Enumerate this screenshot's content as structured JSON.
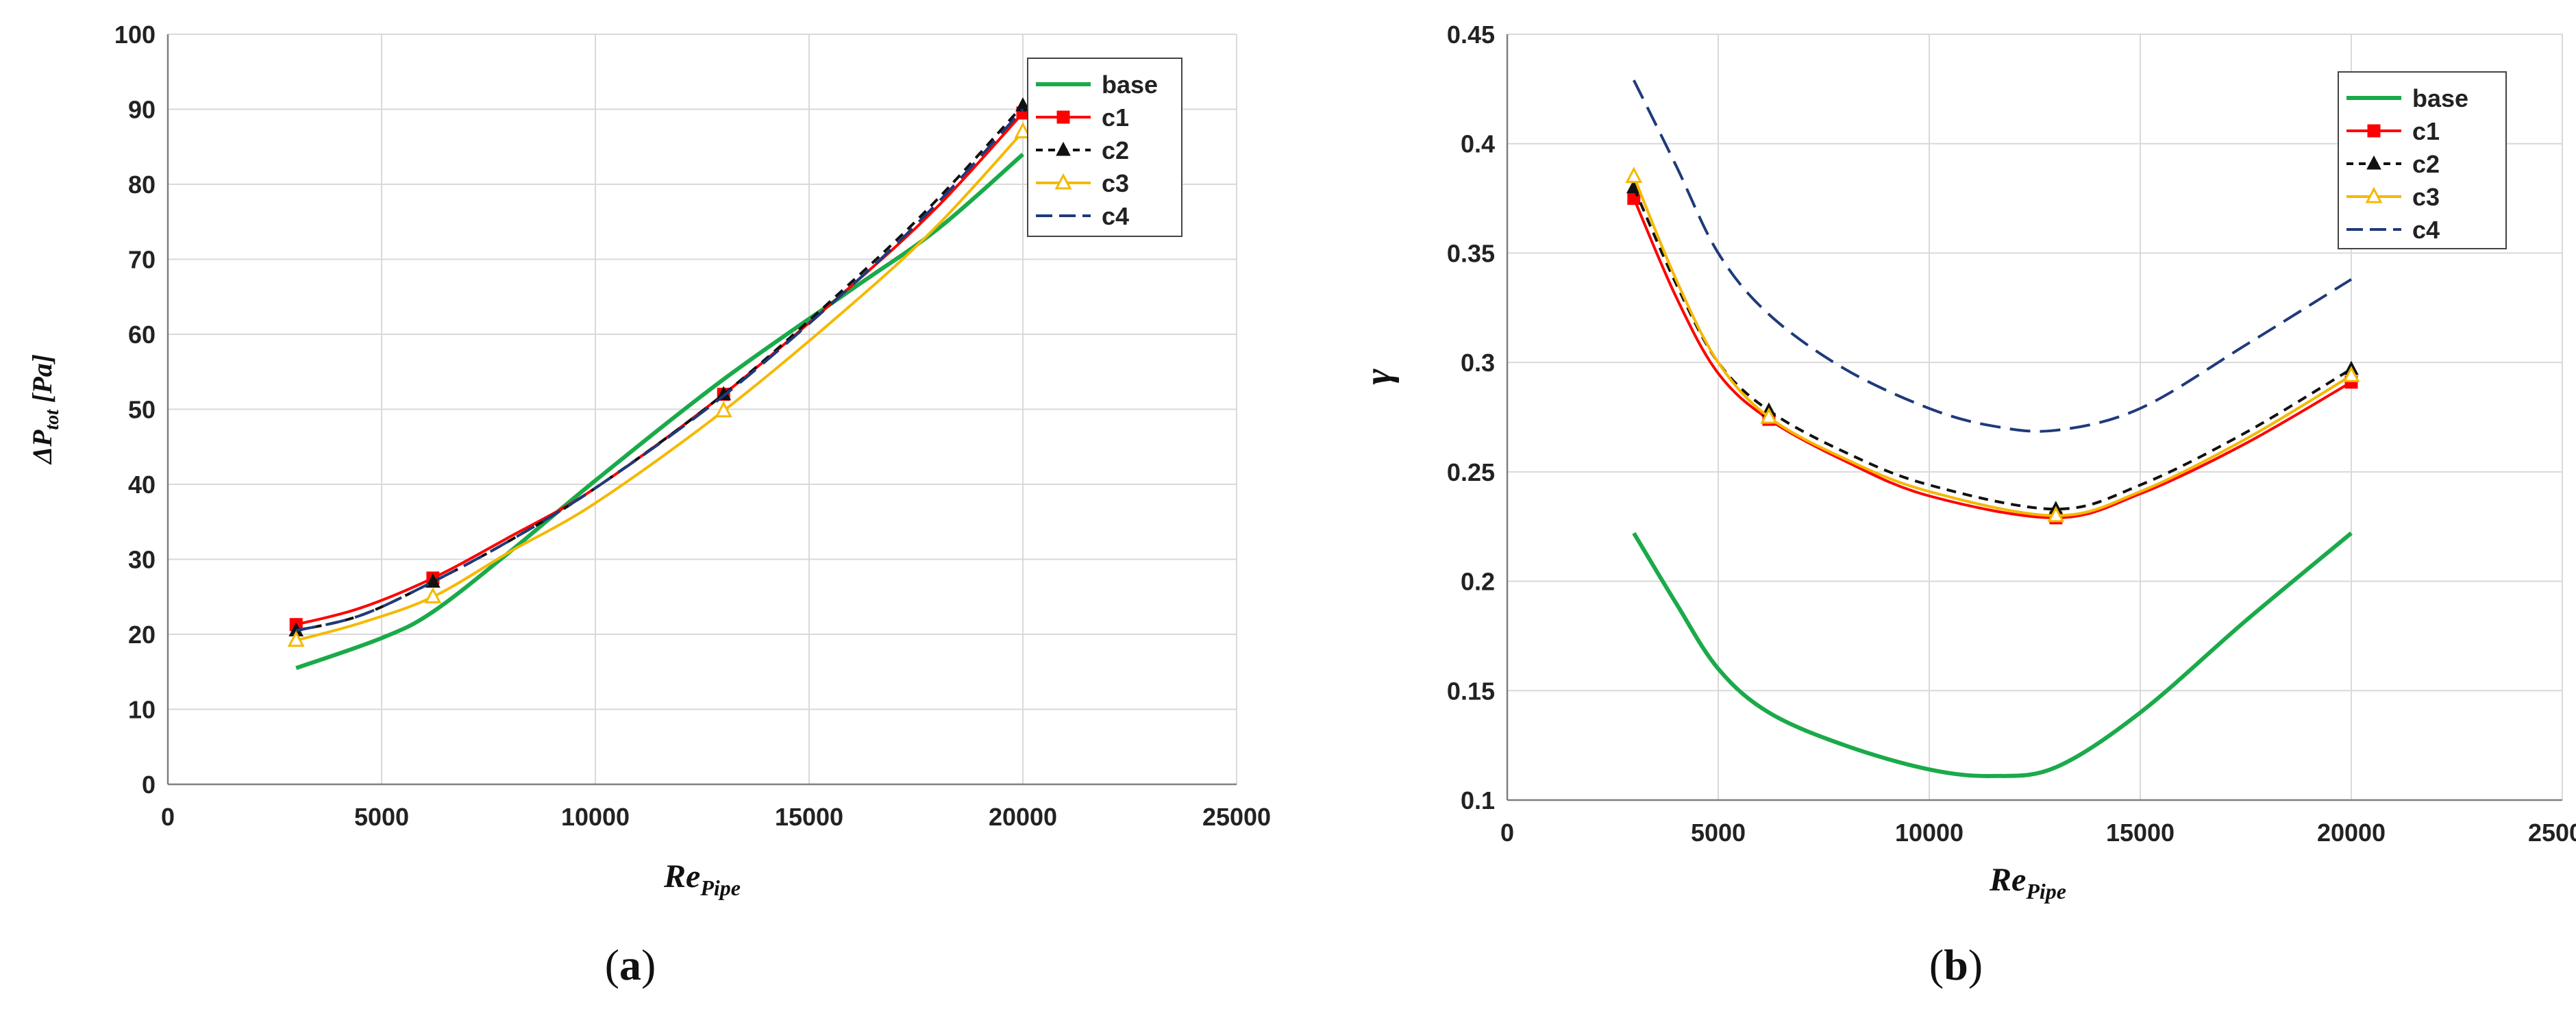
{
  "chart_data": [
    {
      "type": "line",
      "panel_label": "(a)",
      "panel_letter": "a",
      "ylabel_main": "ΔP",
      "ylabel_sub": "tot",
      "ylabel_unit": " [Pa]",
      "xlabel_main": "Re",
      "xlabel_sub": "Pipe",
      "xlim": [
        0,
        25000
      ],
      "ylim": [
        0,
        100
      ],
      "xticks": [
        0,
        5000,
        10000,
        15000,
        20000,
        25000
      ],
      "yticks": [
        0,
        10,
        20,
        30,
        40,
        50,
        60,
        70,
        80,
        90,
        100
      ],
      "grid": true,
      "legend": "top-right",
      "series": [
        {
          "name": "base",
          "color": "#1aaa4a",
          "dash": "",
          "marker": "none",
          "x": [
            3000,
            5000,
            6200,
            8000,
            10000,
            13000,
            16000,
            18000,
            20000
          ],
          "y": [
            15.5,
            19.5,
            23,
            31,
            40.5,
            54,
            66,
            74,
            84
          ]
        },
        {
          "name": "c1",
          "color": "#ff0000",
          "dash": "",
          "marker": "square",
          "x": [
            3000,
            4500,
            6200,
            8000,
            10000,
            13000,
            16000,
            18000,
            20000
          ],
          "y": [
            21.3,
            23.5,
            27.5,
            33,
            39.5,
            52,
            66.5,
            77,
            89.5
          ],
          "mx": [
            3000,
            6200,
            13000,
            20000
          ],
          "my": [
            21.3,
            27.5,
            52,
            89.5
          ]
        },
        {
          "name": "c2",
          "color": "#111111",
          "dash": "14,10",
          "marker": "triangle-filled",
          "x": [
            3000,
            4500,
            6200,
            8000,
            10000,
            13000,
            16000,
            18000,
            20000
          ],
          "y": [
            20.5,
            22.5,
            27,
            32.5,
            39.5,
            52,
            67,
            78,
            90.5
          ],
          "mx": [
            3000,
            6200,
            13000,
            20000
          ],
          "my": [
            20.5,
            27,
            52,
            90.5
          ]
        },
        {
          "name": "c3",
          "color": "#f5b800",
          "dash": "",
          "marker": "triangle-open",
          "x": [
            3000,
            4500,
            6200,
            8000,
            10000,
            13000,
            16000,
            18000,
            20000
          ],
          "y": [
            19.2,
            21.5,
            25,
            31,
            37.5,
            49.8,
            64,
            74.5,
            87
          ],
          "mx": [
            3000,
            6200,
            13000,
            20000
          ],
          "my": [
            19.2,
            25,
            49.8,
            87
          ]
        },
        {
          "name": "c4",
          "color": "#1f3a7a",
          "dash": "30,14",
          "marker": "none",
          "x": [
            3000,
            4500,
            6200,
            8000,
            10000,
            13000,
            16000,
            18000,
            20000
          ],
          "y": [
            20.5,
            22.5,
            27,
            32.5,
            39.5,
            51.8,
            66.5,
            77.5,
            90
          ],
          "mx": [],
          "my": []
        }
      ]
    },
    {
      "type": "line",
      "panel_label": "(b)",
      "panel_letter": "b",
      "ylabel_main": "γ",
      "ylabel_sub": "",
      "ylabel_unit": "",
      "xlabel_main": "Re",
      "xlabel_sub": "Pipe",
      "xlim": [
        0,
        25000
      ],
      "ylim": [
        0.1,
        0.45
      ],
      "xticks": [
        0,
        5000,
        10000,
        15000,
        20000,
        25000
      ],
      "yticks": [
        0.1,
        0.15,
        0.2,
        0.25,
        0.3,
        0.35,
        0.4,
        0.45
      ],
      "ytick_labels": [
        "0.1",
        "0.15",
        "0.2",
        "0.25",
        "0.3",
        "0.35",
        "0.4",
        "0.45"
      ],
      "grid": true,
      "legend": "top-right",
      "series": [
        {
          "name": "base",
          "color": "#1aaa4a",
          "dash": "",
          "marker": "none",
          "x": [
            3000,
            4000,
            5000,
            6200,
            8000,
            10000,
            11500,
            13000,
            15000,
            17500,
            20000
          ],
          "y": [
            0.222,
            0.19,
            0.16,
            0.14,
            0.125,
            0.114,
            0.111,
            0.115,
            0.14,
            0.182,
            0.222
          ]
        },
        {
          "name": "c1",
          "color": "#ff0000",
          "dash": "",
          "marker": "square",
          "x": [
            3000,
            4000,
            5000,
            6200,
            8000,
            10000,
            13000,
            15000,
            17500,
            20000
          ],
          "y": [
            0.375,
            0.33,
            0.295,
            0.274,
            0.255,
            0.239,
            0.229,
            0.24,
            0.263,
            0.291
          ],
          "mx": [
            3000,
            6200,
            13000,
            20000
          ],
          "my": [
            0.375,
            0.274,
            0.229,
            0.291
          ]
        },
        {
          "name": "c2",
          "color": "#111111",
          "dash": "14,10",
          "marker": "triangle-filled",
          "x": [
            3000,
            4000,
            5000,
            6200,
            8000,
            10000,
            13000,
            15000,
            17500,
            20000
          ],
          "y": [
            0.38,
            0.336,
            0.3,
            0.278,
            0.259,
            0.244,
            0.233,
            0.244,
            0.268,
            0.297
          ],
          "mx": [
            3000,
            6200,
            13000,
            20000
          ],
          "my": [
            0.38,
            0.278,
            0.233,
            0.297
          ]
        },
        {
          "name": "c3",
          "color": "#f5b800",
          "dash": "",
          "marker": "triangle-open",
          "x": [
            3000,
            4000,
            5000,
            6200,
            8000,
            10000,
            13000,
            15000,
            17500,
            20000
          ],
          "y": [
            0.385,
            0.338,
            0.3,
            0.275,
            0.256,
            0.241,
            0.23,
            0.241,
            0.265,
            0.294
          ],
          "mx": [
            3000,
            6200,
            13000,
            20000
          ],
          "my": [
            0.385,
            0.275,
            0.23,
            0.294
          ]
        },
        {
          "name": "c4",
          "color": "#1f3a7a",
          "dash": "30,14",
          "marker": "none",
          "x": [
            3000,
            4000,
            5000,
            6200,
            8000,
            10000,
            11500,
            13000,
            15000,
            17500,
            20000
          ],
          "y": [
            0.429,
            0.39,
            0.35,
            0.322,
            0.297,
            0.279,
            0.271,
            0.269,
            0.279,
            0.308,
            0.338
          ],
          "mx": [],
          "my": []
        }
      ]
    }
  ]
}
